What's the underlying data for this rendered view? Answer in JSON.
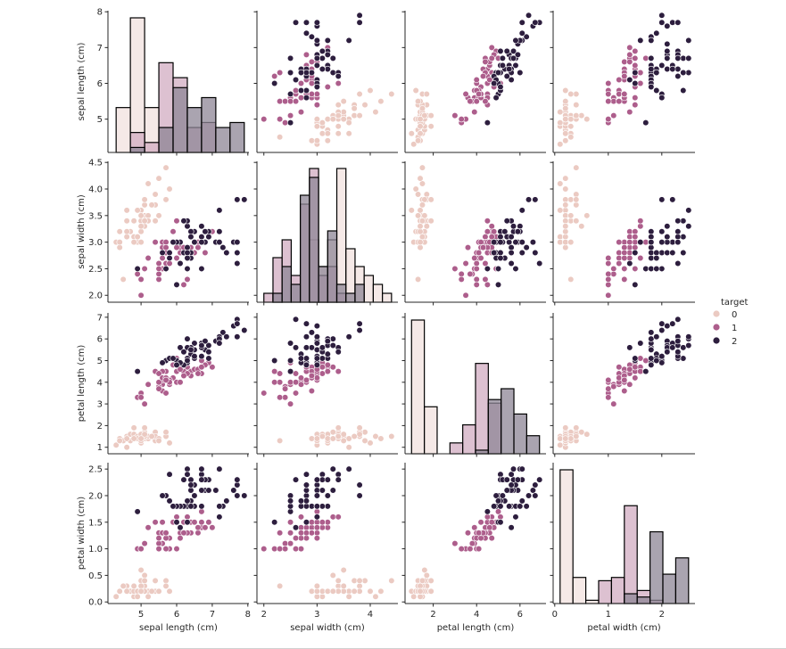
{
  "chart_data": {
    "type": "scatter",
    "subtype": "pairplot",
    "variables": [
      "sepal length (cm)",
      "sepal width (cm)",
      "petal length (cm)",
      "petal width (cm)"
    ],
    "diagonal": "histogram",
    "offdiagonal": "scatter",
    "hue": "target",
    "legend": {
      "title": "target",
      "entries": [
        "0",
        "1",
        "2"
      ],
      "placement": "right"
    },
    "colors": {
      "0": "#ebcac2",
      "1": "#ad5e8c",
      "2": "#2d1e3e"
    },
    "hist_fill_colors": {
      "0": "#f1e2df",
      "1": "#d1acc2",
      "2": "#8e8596"
    },
    "axes": [
      {
        "label": "sepal length (cm)",
        "range": [
          4.07,
          8.03
        ],
        "ticks": [
          5,
          6,
          7,
          8
        ]
      },
      {
        "label": "sepal width (cm)",
        "range": [
          1.87,
          4.52
        ],
        "ticks": [
          2.0,
          2.5,
          3.0,
          3.5,
          4.0,
          4.5
        ],
        "x_ticks": [
          2,
          3,
          4
        ]
      },
      {
        "label": "petal length (cm)",
        "range": [
          0.7,
          7.2
        ],
        "ticks": [
          1,
          2,
          3,
          4,
          5,
          6,
          7
        ],
        "x_ticks": [
          2,
          4,
          6
        ]
      },
      {
        "label": "petal width (cm)",
        "range": [
          -0.03,
          2.62
        ],
        "ticks": [
          0.0,
          0.5,
          1.0,
          1.5,
          2.0,
          2.5
        ],
        "x_ticks": [
          0,
          1,
          2
        ]
      }
    ],
    "tick_labels": {
      "y": [
        [
          "5",
          "6",
          "7",
          "8"
        ],
        [
          "2.0",
          "2.5",
          "3.0",
          "3.5",
          "4.0",
          "4.5"
        ],
        [
          "1",
          "2",
          "3",
          "4",
          "5",
          "6",
          "7"
        ],
        [
          "0.0",
          "0.5",
          "1.0",
          "1.5",
          "2.0",
          "2.5"
        ]
      ],
      "x": [
        [
          "5",
          "6",
          "7",
          "8"
        ],
        [
          "2",
          "3",
          "4"
        ],
        [
          "2",
          "4",
          "6"
        ],
        [
          "0",
          "1",
          "2"
        ]
      ]
    },
    "grid": false,
    "samples": [
      [
        5.1,
        3.5,
        1.4,
        0.2,
        0
      ],
      [
        4.9,
        3.0,
        1.4,
        0.2,
        0
      ],
      [
        4.7,
        3.2,
        1.3,
        0.2,
        0
      ],
      [
        4.6,
        3.1,
        1.5,
        0.2,
        0
      ],
      [
        5.0,
        3.6,
        1.4,
        0.2,
        0
      ],
      [
        5.4,
        3.9,
        1.7,
        0.4,
        0
      ],
      [
        4.6,
        3.4,
        1.4,
        0.3,
        0
      ],
      [
        5.0,
        3.4,
        1.5,
        0.2,
        0
      ],
      [
        4.4,
        2.9,
        1.4,
        0.2,
        0
      ],
      [
        4.9,
        3.1,
        1.5,
        0.1,
        0
      ],
      [
        5.4,
        3.7,
        1.5,
        0.2,
        0
      ],
      [
        4.8,
        3.4,
        1.6,
        0.2,
        0
      ],
      [
        4.8,
        3.0,
        1.4,
        0.1,
        0
      ],
      [
        4.3,
        3.0,
        1.1,
        0.1,
        0
      ],
      [
        5.8,
        4.0,
        1.2,
        0.2,
        0
      ],
      [
        5.7,
        4.4,
        1.5,
        0.4,
        0
      ],
      [
        5.4,
        3.9,
        1.3,
        0.4,
        0
      ],
      [
        5.1,
        3.5,
        1.4,
        0.3,
        0
      ],
      [
        5.7,
        3.8,
        1.7,
        0.3,
        0
      ],
      [
        5.1,
        3.8,
        1.5,
        0.3,
        0
      ],
      [
        5.4,
        3.4,
        1.7,
        0.2,
        0
      ],
      [
        5.1,
        3.7,
        1.5,
        0.4,
        0
      ],
      [
        4.6,
        3.6,
        1.0,
        0.2,
        0
      ],
      [
        5.1,
        3.3,
        1.7,
        0.5,
        0
      ],
      [
        4.8,
        3.4,
        1.9,
        0.2,
        0
      ],
      [
        5.0,
        3.0,
        1.6,
        0.2,
        0
      ],
      [
        5.0,
        3.4,
        1.6,
        0.4,
        0
      ],
      [
        5.2,
        3.5,
        1.5,
        0.2,
        0
      ],
      [
        5.2,
        3.4,
        1.4,
        0.2,
        0
      ],
      [
        4.7,
        3.2,
        1.6,
        0.2,
        0
      ],
      [
        4.8,
        3.1,
        1.6,
        0.2,
        0
      ],
      [
        5.4,
        3.4,
        1.5,
        0.4,
        0
      ],
      [
        5.2,
        4.1,
        1.5,
        0.1,
        0
      ],
      [
        5.5,
        4.2,
        1.4,
        0.2,
        0
      ],
      [
        4.9,
        3.1,
        1.5,
        0.2,
        0
      ],
      [
        5.0,
        3.2,
        1.2,
        0.2,
        0
      ],
      [
        5.5,
        3.5,
        1.3,
        0.2,
        0
      ],
      [
        4.9,
        3.6,
        1.4,
        0.1,
        0
      ],
      [
        4.4,
        3.0,
        1.3,
        0.2,
        0
      ],
      [
        5.1,
        3.4,
        1.5,
        0.2,
        0
      ],
      [
        5.0,
        3.5,
        1.3,
        0.3,
        0
      ],
      [
        4.5,
        2.3,
        1.3,
        0.3,
        0
      ],
      [
        4.4,
        3.2,
        1.3,
        0.2,
        0
      ],
      [
        5.0,
        3.5,
        1.6,
        0.6,
        0
      ],
      [
        5.1,
        3.8,
        1.9,
        0.4,
        0
      ],
      [
        4.8,
        3.0,
        1.4,
        0.3,
        0
      ],
      [
        5.1,
        3.8,
        1.6,
        0.2,
        0
      ],
      [
        4.6,
        3.2,
        1.4,
        0.2,
        0
      ],
      [
        5.3,
        3.7,
        1.5,
        0.2,
        0
      ],
      [
        5.0,
        3.3,
        1.4,
        0.2,
        0
      ],
      [
        7.0,
        3.2,
        4.7,
        1.4,
        1
      ],
      [
        6.4,
        3.2,
        4.5,
        1.5,
        1
      ],
      [
        6.9,
        3.1,
        4.9,
        1.5,
        1
      ],
      [
        5.5,
        2.3,
        4.0,
        1.3,
        1
      ],
      [
        6.5,
        2.8,
        4.6,
        1.5,
        1
      ],
      [
        5.7,
        2.8,
        4.5,
        1.3,
        1
      ],
      [
        6.3,
        3.3,
        4.7,
        1.6,
        1
      ],
      [
        4.9,
        2.4,
        3.3,
        1.0,
        1
      ],
      [
        6.6,
        2.9,
        4.6,
        1.3,
        1
      ],
      [
        5.2,
        2.7,
        3.9,
        1.4,
        1
      ],
      [
        5.0,
        2.0,
        3.5,
        1.0,
        1
      ],
      [
        5.9,
        3.0,
        4.2,
        1.5,
        1
      ],
      [
        6.0,
        2.2,
        4.0,
        1.0,
        1
      ],
      [
        6.1,
        2.9,
        4.7,
        1.4,
        1
      ],
      [
        5.6,
        2.9,
        3.6,
        1.3,
        1
      ],
      [
        6.7,
        3.1,
        4.4,
        1.4,
        1
      ],
      [
        5.6,
        3.0,
        4.5,
        1.5,
        1
      ],
      [
        5.8,
        2.7,
        4.1,
        1.0,
        1
      ],
      [
        6.2,
        2.2,
        4.5,
        1.5,
        1
      ],
      [
        5.6,
        2.5,
        3.9,
        1.1,
        1
      ],
      [
        5.9,
        3.2,
        4.8,
        1.8,
        1
      ],
      [
        6.1,
        2.8,
        4.0,
        1.3,
        1
      ],
      [
        6.3,
        2.5,
        4.9,
        1.5,
        1
      ],
      [
        6.1,
        2.8,
        4.7,
        1.2,
        1
      ],
      [
        6.4,
        2.9,
        4.3,
        1.3,
        1
      ],
      [
        6.6,
        3.0,
        4.4,
        1.4,
        1
      ],
      [
        6.8,
        2.8,
        4.8,
        1.4,
        1
      ],
      [
        6.7,
        3.0,
        5.0,
        1.7,
        1
      ],
      [
        6.0,
        2.9,
        4.5,
        1.5,
        1
      ],
      [
        5.7,
        2.6,
        3.5,
        1.0,
        1
      ],
      [
        5.5,
        2.4,
        3.8,
        1.1,
        1
      ],
      [
        5.5,
        2.4,
        3.7,
        1.0,
        1
      ],
      [
        5.8,
        2.7,
        3.9,
        1.2,
        1
      ],
      [
        6.0,
        2.7,
        5.1,
        1.6,
        1
      ],
      [
        5.4,
        3.0,
        4.5,
        1.5,
        1
      ],
      [
        6.0,
        3.4,
        4.5,
        1.6,
        1
      ],
      [
        6.7,
        3.1,
        4.7,
        1.5,
        1
      ],
      [
        6.3,
        2.3,
        4.4,
        1.3,
        1
      ],
      [
        5.6,
        3.0,
        4.1,
        1.3,
        1
      ],
      [
        5.5,
        2.5,
        4.0,
        1.3,
        1
      ],
      [
        5.5,
        2.6,
        4.4,
        1.2,
        1
      ],
      [
        6.1,
        3.0,
        4.6,
        1.4,
        1
      ],
      [
        5.8,
        2.6,
        4.0,
        1.2,
        1
      ],
      [
        5.0,
        2.3,
        3.3,
        1.0,
        1
      ],
      [
        5.6,
        2.7,
        4.2,
        1.3,
        1
      ],
      [
        5.7,
        3.0,
        4.2,
        1.2,
        1
      ],
      [
        5.7,
        2.9,
        4.2,
        1.3,
        1
      ],
      [
        6.2,
        2.9,
        4.3,
        1.3,
        1
      ],
      [
        5.1,
        2.5,
        3.0,
        1.1,
        1
      ],
      [
        5.7,
        2.8,
        4.1,
        1.3,
        1
      ],
      [
        6.3,
        3.3,
        6.0,
        2.5,
        2
      ],
      [
        5.8,
        2.7,
        5.1,
        1.9,
        2
      ],
      [
        7.1,
        3.0,
        5.9,
        2.1,
        2
      ],
      [
        6.3,
        2.9,
        5.6,
        1.8,
        2
      ],
      [
        6.5,
        3.0,
        5.8,
        2.2,
        2
      ],
      [
        7.6,
        3.0,
        6.6,
        2.1,
        2
      ],
      [
        4.9,
        2.5,
        4.5,
        1.7,
        2
      ],
      [
        7.3,
        2.9,
        6.3,
        1.8,
        2
      ],
      [
        6.7,
        2.5,
        5.8,
        1.8,
        2
      ],
      [
        7.2,
        3.6,
        6.1,
        2.5,
        2
      ],
      [
        6.5,
        3.2,
        5.1,
        2.0,
        2
      ],
      [
        6.4,
        2.7,
        5.3,
        1.9,
        2
      ],
      [
        6.8,
        3.0,
        5.5,
        2.1,
        2
      ],
      [
        5.7,
        2.5,
        5.0,
        2.0,
        2
      ],
      [
        5.8,
        2.8,
        5.1,
        2.4,
        2
      ],
      [
        6.4,
        3.2,
        5.3,
        2.3,
        2
      ],
      [
        6.5,
        3.0,
        5.5,
        1.8,
        2
      ],
      [
        7.7,
        3.8,
        6.7,
        2.2,
        2
      ],
      [
        7.7,
        2.6,
        6.9,
        2.3,
        2
      ],
      [
        6.0,
        2.2,
        5.0,
        1.5,
        2
      ],
      [
        6.9,
        3.2,
        5.7,
        2.3,
        2
      ],
      [
        5.6,
        2.8,
        4.9,
        2.0,
        2
      ],
      [
        7.7,
        2.8,
        6.7,
        2.0,
        2
      ],
      [
        6.3,
        2.7,
        4.9,
        1.8,
        2
      ],
      [
        6.7,
        3.3,
        5.7,
        2.1,
        2
      ],
      [
        7.2,
        3.2,
        6.0,
        1.8,
        2
      ],
      [
        6.2,
        2.8,
        4.8,
        1.8,
        2
      ],
      [
        6.1,
        3.0,
        4.9,
        1.8,
        2
      ],
      [
        6.4,
        2.8,
        5.6,
        2.1,
        2
      ],
      [
        7.2,
        3.0,
        5.8,
        1.6,
        2
      ],
      [
        7.4,
        2.8,
        6.1,
        1.9,
        2
      ],
      [
        7.9,
        3.8,
        6.4,
        2.0,
        2
      ],
      [
        6.4,
        2.8,
        5.6,
        2.2,
        2
      ],
      [
        6.3,
        2.8,
        5.1,
        1.5,
        2
      ],
      [
        6.1,
        2.6,
        5.6,
        1.4,
        2
      ],
      [
        7.7,
        3.0,
        6.1,
        2.3,
        2
      ],
      [
        6.3,
        3.4,
        5.6,
        2.4,
        2
      ],
      [
        6.4,
        3.1,
        5.5,
        1.8,
        2
      ],
      [
        6.0,
        3.0,
        4.8,
        1.8,
        2
      ],
      [
        6.9,
        3.1,
        5.4,
        2.1,
        2
      ],
      [
        6.7,
        3.1,
        5.6,
        2.4,
        2
      ],
      [
        6.9,
        3.1,
        5.1,
        2.3,
        2
      ],
      [
        5.8,
        2.7,
        5.1,
        1.9,
        2
      ],
      [
        6.8,
        3.2,
        5.9,
        2.3,
        2
      ],
      [
        6.7,
        3.3,
        5.7,
        2.5,
        2
      ],
      [
        6.7,
        3.0,
        5.2,
        2.3,
        2
      ],
      [
        6.3,
        2.5,
        5.0,
        1.9,
        2
      ],
      [
        6.5,
        3.0,
        5.2,
        2.0,
        2
      ],
      [
        6.2,
        3.4,
        5.4,
        2.3,
        2
      ],
      [
        5.9,
        3.0,
        5.1,
        1.8,
        2
      ]
    ]
  }
}
